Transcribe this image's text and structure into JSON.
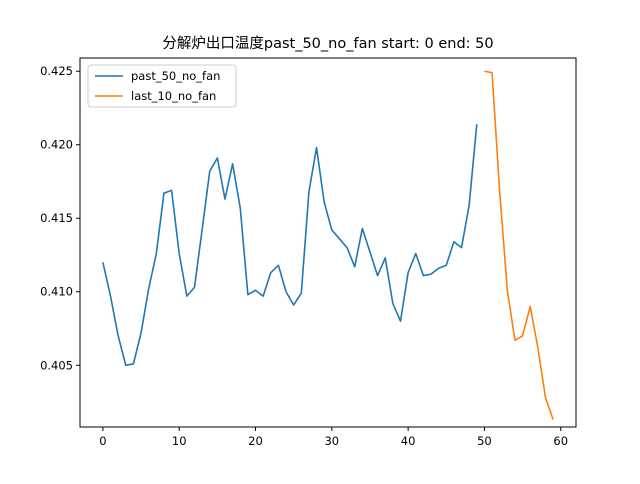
{
  "chart_data": {
    "type": "line",
    "title": "分解炉出口温度past_50_no_fan  start: 0 end: 50",
    "xlabel": "",
    "ylabel": "",
    "xlim": [
      -3,
      62
    ],
    "ylim": [
      0.4008,
      0.4259
    ],
    "xticks": [
      0,
      10,
      20,
      30,
      40,
      50,
      60
    ],
    "yticks": [
      0.405,
      0.41,
      0.415,
      0.42,
      0.425
    ],
    "ytick_labels": [
      "0.405",
      "0.410",
      "0.415",
      "0.420",
      "0.425"
    ],
    "grid": false,
    "legend_position": "top-left",
    "series": [
      {
        "name": "past_50_no_fan",
        "color": "#1f77b4",
        "x": [
          0,
          1,
          2,
          3,
          4,
          5,
          6,
          7,
          8,
          9,
          10,
          11,
          12,
          13,
          14,
          15,
          16,
          17,
          18,
          19,
          20,
          21,
          22,
          23,
          24,
          25,
          26,
          27,
          28,
          29,
          30,
          31,
          32,
          33,
          34,
          35,
          36,
          37,
          38,
          39,
          40,
          41,
          42,
          43,
          44,
          45,
          46,
          47,
          48,
          49
        ],
        "y": [
          0.412,
          0.4097,
          0.407,
          0.405,
          0.4051,
          0.4072,
          0.4102,
          0.4126,
          0.4167,
          0.4169,
          0.4126,
          0.4097,
          0.4103,
          0.4142,
          0.4182,
          0.4191,
          0.4163,
          0.4187,
          0.4157,
          0.4098,
          0.4101,
          0.4097,
          0.4113,
          0.4118,
          0.41,
          0.4091,
          0.4099,
          0.4168,
          0.4198,
          0.4161,
          0.4142,
          0.4136,
          0.413,
          0.4117,
          0.4143,
          0.4127,
          0.4111,
          0.4123,
          0.4092,
          0.408,
          0.4113,
          0.4126,
          0.4111,
          0.4112,
          0.4116,
          0.4118,
          0.4134,
          0.413,
          0.4159,
          0.4214
        ]
      },
      {
        "name": "last_10_no_fan",
        "color": "#ff7f0e",
        "x": [
          50,
          51,
          52,
          53,
          54,
          55,
          56,
          57,
          58,
          59
        ],
        "y": [
          0.425,
          0.4249,
          0.4168,
          0.4101,
          0.4067,
          0.407,
          0.409,
          0.4062,
          0.4028,
          0.4013
        ]
      }
    ]
  }
}
